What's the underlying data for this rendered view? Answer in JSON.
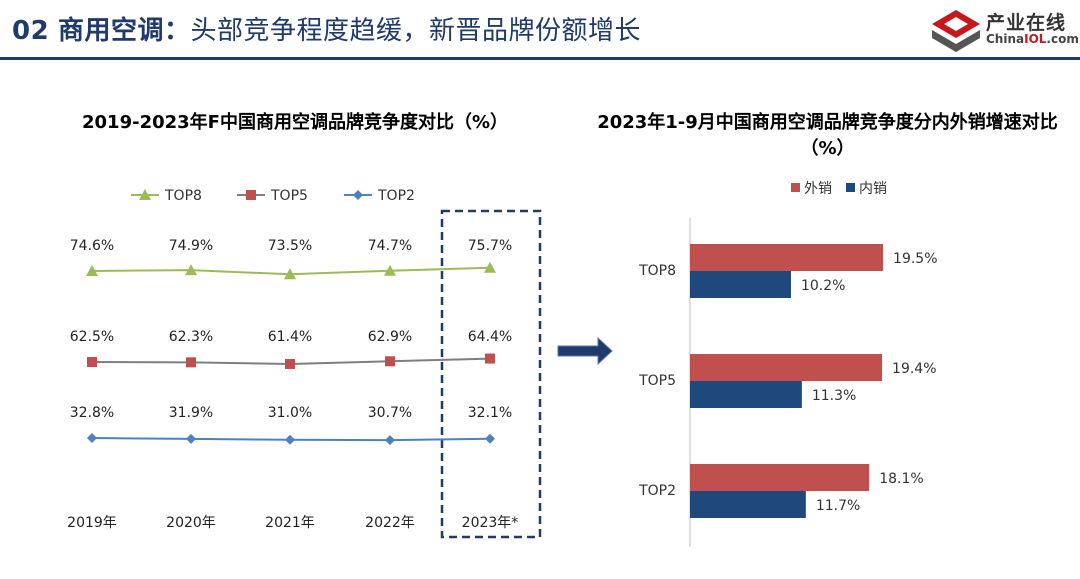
{
  "header": {
    "number": "02",
    "category": "商用空调",
    "colon": "：",
    "subtitle": "头部竞争程度趋缓，新晋品牌份额增长",
    "logo_text": "产业在线",
    "logo_sub_prefix": "China",
    "logo_sub_highlight": "IOL",
    "logo_sub_suffix": ".com"
  },
  "colors": {
    "accent": "#1f3a6b",
    "top8": "#9bbb59",
    "top5_line": "#7f7f7f",
    "top5_marker": "#c0504d",
    "top2": "#4f81bd",
    "export": "#c0504d",
    "domestic": "#1f497d"
  },
  "chart_data": [
    {
      "type": "line",
      "title": "2019-2023年F中国商用空调品牌竞争度对比（%）",
      "categories": [
        "2019年",
        "2020年",
        "2021年",
        "2022年",
        "2023年*"
      ],
      "series": [
        {
          "name": "TOP8",
          "values": [
            74.6,
            74.9,
            73.5,
            74.7,
            75.7
          ],
          "labels": [
            "74.6%",
            "74.9%",
            "73.5%",
            "74.7%",
            "75.7%"
          ],
          "marker": "triangle"
        },
        {
          "name": "TOP5",
          "values": [
            62.5,
            62.3,
            61.4,
            62.9,
            64.4
          ],
          "labels": [
            "62.5%",
            "62.3%",
            "61.4%",
            "62.9%",
            "64.4%"
          ],
          "marker": "square"
        },
        {
          "name": "TOP2",
          "values": [
            32.8,
            31.9,
            31.0,
            30.7,
            32.1
          ],
          "labels": [
            "32.8%",
            "31.9%",
            "31.0%",
            "30.7%",
            "32.1%"
          ],
          "marker": "diamond"
        }
      ],
      "legend_position": "top",
      "highlight_category": "2023年*",
      "grid": false
    },
    {
      "type": "bar",
      "orientation": "horizontal",
      "title": "2023年1-9月中国商用空调品牌竞争度分内外销增速对比（%）",
      "categories": [
        "TOP8",
        "TOP5",
        "TOP2"
      ],
      "series": [
        {
          "name": "外销",
          "values": [
            19.5,
            19.4,
            18.1
          ],
          "labels": [
            "19.5%",
            "19.4%",
            "18.1%"
          ]
        },
        {
          "name": "内销",
          "values": [
            10.2,
            11.3,
            11.7
          ],
          "labels": [
            "10.2%",
            "11.3%",
            "11.7%"
          ]
        }
      ],
      "legend_position": "top",
      "grid": false
    }
  ]
}
